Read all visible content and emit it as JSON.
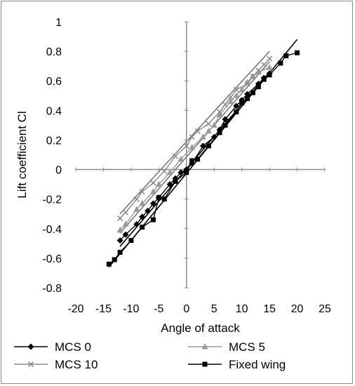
{
  "chart_data": {
    "type": "scatter",
    "xlabel": "Angle of attack",
    "ylabel": "Lift coefficient Cl",
    "xlim": [
      -20,
      25
    ],
    "ylim": [
      -0.8,
      1
    ],
    "x_ticks": [
      "-20",
      "-15",
      "-10",
      "-5",
      "0",
      "5",
      "10",
      "15",
      "20",
      "25"
    ],
    "y_ticks": [
      "-0.8",
      "-0.6",
      "-0.4",
      "-0.2",
      "0",
      "0.2",
      "0.4",
      "0.6",
      "0.8",
      "1"
    ],
    "grid": false,
    "legend_position": "bottom",
    "series": [
      {
        "name": "MCS 0",
        "color": "#000000",
        "marker": "diamond",
        "points": [
          [
            -12,
            -0.48
          ],
          [
            -11,
            -0.44
          ],
          [
            -9,
            -0.37
          ],
          [
            -8,
            -0.32
          ],
          [
            -7,
            -0.28
          ],
          [
            -6,
            -0.23
          ],
          [
            -5,
            -0.19
          ],
          [
            -3,
            -0.1
          ],
          [
            -2,
            -0.06
          ],
          [
            -1,
            -0.02
          ],
          [
            0,
            0.0
          ],
          [
            1,
            0.04
          ],
          [
            3,
            0.16
          ],
          [
            5,
            0.22
          ],
          [
            6,
            0.27
          ],
          [
            7,
            0.34
          ],
          [
            9,
            0.43
          ],
          [
            10,
            0.47
          ],
          [
            11,
            0.51
          ],
          [
            13,
            0.58
          ],
          [
            14,
            0.62
          ],
          [
            15,
            0.65
          ]
        ],
        "trendline": [
          [
            -12,
            -0.52
          ],
          [
            15,
            0.66
          ]
        ]
      },
      {
        "name": "MCS 5",
        "color": "#999999",
        "marker": "triangle",
        "points": [
          [
            -12,
            -0.41
          ],
          [
            -11,
            -0.37
          ],
          [
            -9,
            -0.27
          ],
          [
            -8,
            -0.23
          ],
          [
            -6,
            -0.15
          ],
          [
            -5,
            -0.1
          ],
          [
            -3,
            -0.02
          ],
          [
            -1,
            0.07
          ],
          [
            1,
            0.15
          ],
          [
            3,
            0.22
          ],
          [
            4,
            0.26
          ],
          [
            5,
            0.3
          ],
          [
            6,
            0.37
          ],
          [
            8,
            0.46
          ],
          [
            9,
            0.5
          ],
          [
            10,
            0.54
          ],
          [
            11,
            0.59
          ],
          [
            12,
            0.63
          ],
          [
            13,
            0.66
          ],
          [
            15,
            0.69
          ]
        ],
        "trendline": [
          [
            -12,
            -0.43
          ],
          [
            15,
            0.73
          ]
        ]
      },
      {
        "name": "MCS 10",
        "color": "#8c8c8c",
        "marker": "cross",
        "points": [
          [
            -12,
            -0.33
          ],
          [
            -11,
            -0.29
          ],
          [
            -9,
            -0.2
          ],
          [
            -8,
            -0.15
          ],
          [
            -6,
            -0.09
          ],
          [
            -4,
            -0.01
          ],
          [
            -2,
            0.09
          ],
          [
            0,
            0.16
          ],
          [
            1,
            0.22
          ],
          [
            2,
            0.26
          ],
          [
            4,
            0.31
          ],
          [
            6,
            0.39
          ],
          [
            7,
            0.44
          ],
          [
            8,
            0.49
          ],
          [
            9,
            0.54
          ],
          [
            11,
            0.58
          ],
          [
            12,
            0.63
          ],
          [
            13,
            0.67
          ],
          [
            14,
            0.71
          ],
          [
            15,
            0.75
          ]
        ],
        "trendline": [
          [
            -12,
            -0.3
          ],
          [
            15,
            0.8
          ]
        ]
      },
      {
        "name": "Fixed wing",
        "color": "#000000",
        "marker": "square",
        "points": [
          [
            -14,
            -0.64
          ],
          [
            -13,
            -0.61
          ],
          [
            -12,
            -0.56
          ],
          [
            -10,
            -0.48
          ],
          [
            -8,
            -0.39
          ],
          [
            -6,
            -0.34
          ],
          [
            -5,
            -0.19
          ],
          [
            -4,
            -0.2
          ],
          [
            -2,
            -0.08
          ],
          [
            0,
            -0.02
          ],
          [
            1,
            0.06
          ],
          [
            2,
            0.07
          ],
          [
            4,
            0.16
          ],
          [
            6,
            0.25
          ],
          [
            7,
            0.3
          ],
          [
            9,
            0.39
          ],
          [
            10,
            0.45
          ],
          [
            11,
            0.48
          ],
          [
            12,
            0.52
          ],
          [
            13,
            0.56
          ],
          [
            14,
            0.61
          ],
          [
            15,
            0.64
          ],
          [
            17,
            0.72
          ],
          [
            18,
            0.77
          ],
          [
            20,
            0.79
          ]
        ],
        "trendline": [
          [
            -14,
            -0.66
          ],
          [
            20,
            0.88
          ]
        ]
      }
    ]
  }
}
